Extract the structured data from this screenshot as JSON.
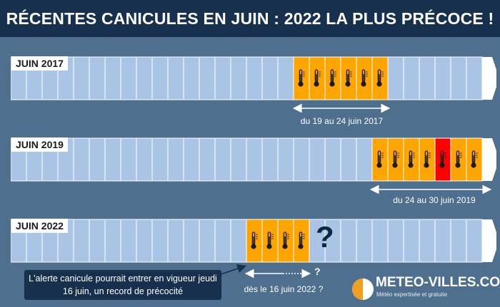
{
  "title": "RÉCENTES CANICULES EN JUIN : 2022 LA PLUS PRÉCOCE !",
  "colors": {
    "cell": "#a9c4e4",
    "heat": "#ffa500",
    "extreme": "#ff0000",
    "navy": "#17304e",
    "background": "#4f6f8f"
  },
  "timelines": [
    {
      "label": "JUIN 2017",
      "range_caption": "du 19 au 24 juin 2017",
      "heat_days": [
        19,
        20,
        21,
        22,
        23,
        24
      ],
      "extreme_days": []
    },
    {
      "label": "JUIN 2019",
      "range_caption": "du 24 au 30 juin 2019",
      "heat_days": [
        24,
        25,
        26,
        27,
        28,
        29,
        30
      ],
      "extreme_days": [
        28
      ]
    },
    {
      "label": "JUIN 2022",
      "range_caption": "dès le 16 juin 2022 ?",
      "heat_days": [
        16,
        17,
        18,
        19
      ],
      "extreme_days": []
    }
  ],
  "question_mark": "?",
  "question_mark_small": "?",
  "callout": "L'alerte canicule pourrait entrer en vigueur jeudi 16 juin, un record de précocité",
  "logo": {
    "name": "METEO-VILLES.COM",
    "tagline": "Météo expertisée et gratuite"
  }
}
